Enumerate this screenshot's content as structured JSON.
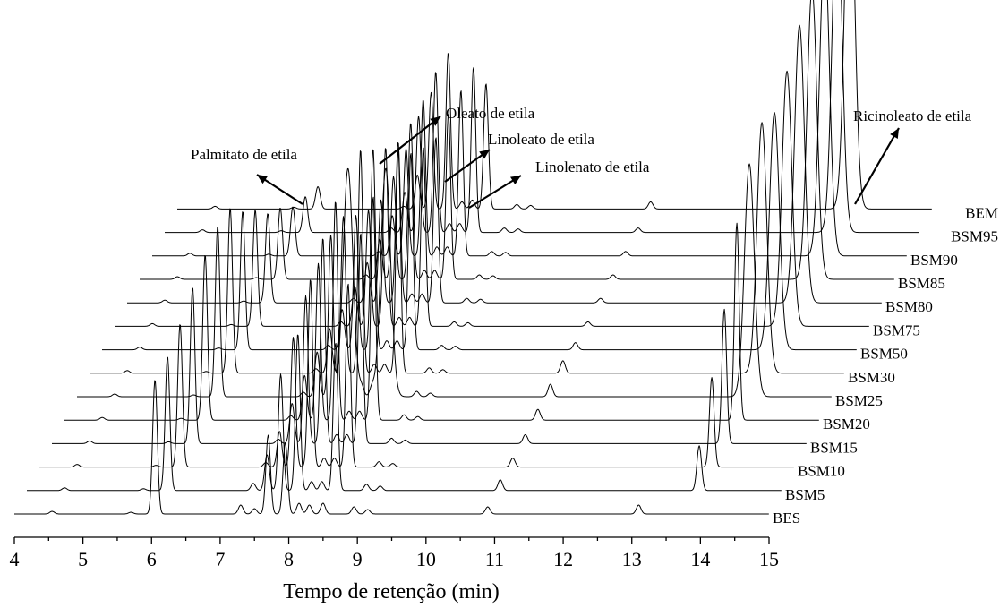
{
  "chart_data": {
    "type": "line",
    "subtype": "stacked-chromatogram",
    "title": "",
    "xlabel": "Tempo de retenção (min)",
    "ylabel": "",
    "xlim": [
      4,
      15
    ],
    "xticks": [
      4,
      5,
      6,
      7,
      8,
      9,
      10,
      11,
      12,
      13,
      14,
      15
    ],
    "grid": false,
    "legend": "none",
    "peaks": {
      "retention_times": [
        4.55,
        5.7,
        6.05,
        7.3,
        7.5,
        7.7,
        7.95,
        8.15,
        8.3,
        8.5,
        8.95,
        9.15,
        10.9,
        13.1,
        13.8
      ],
      "bem_retention_times": [
        4.55,
        5.7,
        6.05,
        7.3,
        7.5,
        7.7,
        7.95,
        8.15,
        8.3,
        8.5,
        8.95,
        9.15,
        10.9,
        13.8
      ]
    },
    "series": [
      {
        "name": "BES",
        "peak_heights": [
          3,
          2,
          150,
          10,
          6,
          88,
          80,
          12,
          10,
          12,
          8,
          5,
          8,
          10,
          0
        ]
      },
      {
        "name": "BSM5",
        "peak_heights": [
          3,
          2,
          150,
          8,
          40,
          130,
          175,
          10,
          10,
          165,
          7,
          5,
          12,
          0,
          50
        ]
      },
      {
        "name": "BSM10",
        "peak_heights": [
          3,
          2,
          160,
          5,
          40,
          145,
          210,
          10,
          10,
          205,
          6,
          4,
          10,
          0,
          100
        ]
      },
      {
        "name": "BSM15",
        "peak_heights": [
          3,
          2,
          175,
          5,
          45,
          165,
          230,
          10,
          10,
          235,
          6,
          4,
          10,
          0,
          150
        ]
      },
      {
        "name": "BSM20",
        "peak_heights": [
          3,
          2,
          185,
          5,
          50,
          175,
          245,
          10,
          10,
          250,
          6,
          4,
          12,
          0,
          220
        ]
      },
      {
        "name": "BSM25",
        "peak_heights": [
          3,
          2,
          190,
          5,
          50,
          180,
          255,
          10,
          10,
          255,
          6,
          4,
          14,
          0,
          260
        ]
      },
      {
        "name": "BSM30",
        "peak_heights": [
          3,
          2,
          185,
          5,
          50,
          175,
          250,
          10,
          10,
          250,
          6,
          4,
          14,
          0,
          280
        ]
      },
      {
        "name": "BSM50",
        "peak_heights": [
          3,
          2,
          155,
          5,
          45,
          150,
          225,
          10,
          10,
          220,
          5,
          4,
          8,
          0,
          265
        ]
      },
      {
        "name": "BSM75",
        "peak_heights": [
          3,
          2,
          130,
          5,
          45,
          130,
          200,
          10,
          10,
          200,
          5,
          4,
          5,
          0,
          285
        ]
      },
      {
        "name": "BSM80",
        "peak_heights": [
          3,
          2,
          100,
          5,
          45,
          115,
          180,
          10,
          10,
          185,
          5,
          4,
          5,
          0,
          310
        ]
      },
      {
        "name": "BSM85",
        "peak_heights": [
          3,
          2,
          80,
          5,
          45,
          115,
          175,
          10,
          10,
          185,
          5,
          4,
          5,
          0,
          325
        ]
      },
      {
        "name": "BSM90",
        "peak_heights": [
          3,
          2,
          55,
          5,
          45,
          120,
          175,
          10,
          10,
          185,
          5,
          4,
          5,
          0,
          345
        ]
      },
      {
        "name": "BSM95",
        "peak_heights": [
          3,
          2,
          40,
          5,
          45,
          130,
          180,
          10,
          10,
          185,
          5,
          4,
          5,
          0,
          375
        ]
      },
      {
        "name": "BEM",
        "peak_heights": [
          3,
          2,
          25,
          3,
          38,
          130,
          175,
          8,
          10,
          140,
          5,
          4,
          8,
          0,
          410
        ]
      }
    ],
    "annotations": [
      "Palmitato de etila",
      "Oleato de etila",
      "Linoleato de etila",
      "Linolenato de etila",
      "Ricinoleato de etila"
    ]
  }
}
